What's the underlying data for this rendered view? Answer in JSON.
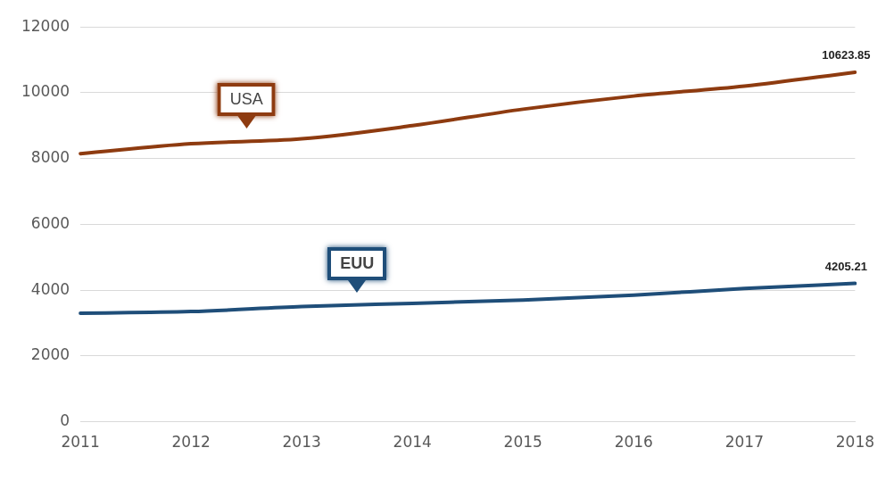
{
  "chart_data": {
    "type": "line",
    "categories": [
      "2011",
      "2012",
      "2013",
      "2014",
      "2015",
      "2016",
      "2017",
      "2018"
    ],
    "series": [
      {
        "name": "USA",
        "color": "#8e3b10",
        "values": [
          8150,
          8450,
          8600,
          9000,
          9500,
          9900,
          10200,
          10623.85
        ],
        "value_labels": [
          null,
          null,
          null,
          null,
          null,
          null,
          null,
          "10623.85"
        ]
      },
      {
        "name": "EUU",
        "color": "#1f4e79",
        "values": [
          3300,
          3350,
          3500,
          3600,
          3700,
          3850,
          4050,
          4205.21
        ],
        "value_labels": [
          null,
          null,
          null,
          null,
          null,
          null,
          null,
          "4205.21"
        ]
      }
    ],
    "ylim": [
      0,
      12000
    ],
    "yticks": [
      0,
      2000,
      4000,
      6000,
      8000,
      10000,
      12000
    ],
    "grid": "y",
    "legend": false,
    "marker": "none",
    "line_style": "solid"
  }
}
